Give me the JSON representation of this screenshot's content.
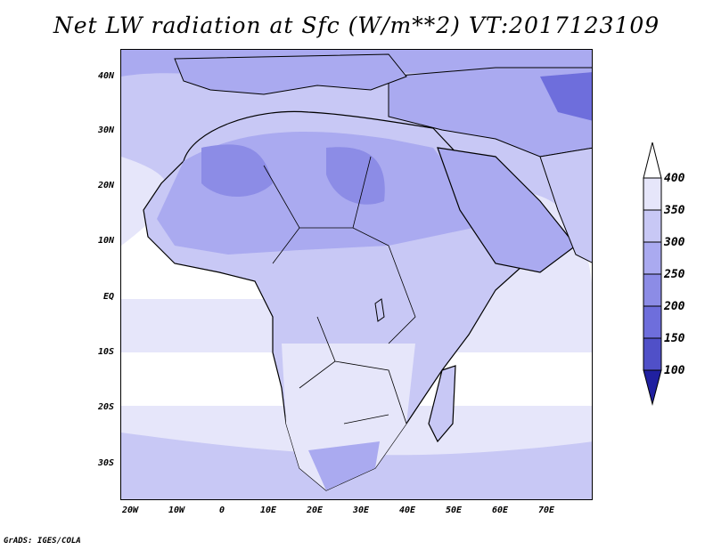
{
  "title": "Net LW radiation at Sfc (W/m**2) VT:2017123109",
  "credit": "GrADS: IGES/COLA",
  "lat_labels": [
    "40N",
    "30N",
    "20N",
    "10N",
    "EQ",
    "10S",
    "20S",
    "30S"
  ],
  "lon_labels": [
    "20W",
    "10W",
    "0",
    "10E",
    "20E",
    "30E",
    "40E",
    "50E",
    "60E",
    "70E"
  ],
  "colorbar": {
    "labels": [
      "400",
      "350",
      "300",
      "250",
      "200",
      "150",
      "100"
    ],
    "colors": [
      "#e6e6fa",
      "#c8c8f5",
      "#aaaaf0",
      "#8c8ce6",
      "#6e6edc",
      "#5050c8",
      "#3232b4"
    ]
  },
  "colors": {
    "ocean": "#ffffff",
    "low_value_fill": "#e6e6fa",
    "mid_value_fill": "#c8c8f5",
    "high_value_fill": "#aaaaf0",
    "peak_value_fill": "#8c8ce6",
    "coast": "#000000"
  }
}
